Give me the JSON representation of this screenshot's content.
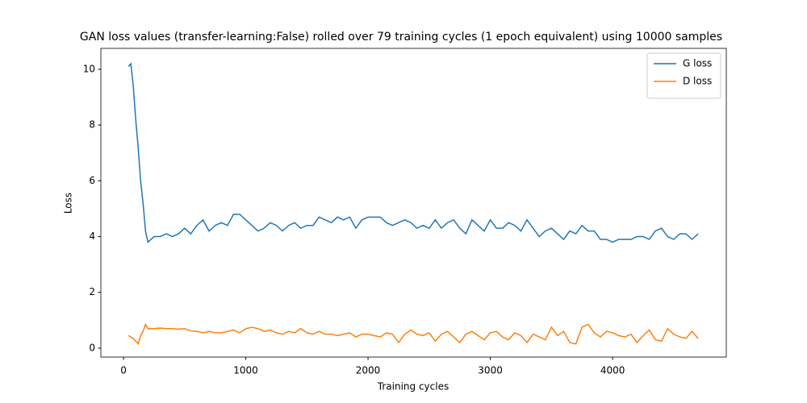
{
  "chart_data": {
    "type": "line",
    "title": "GAN loss values (transfer-learning:False) rolled over 79 training cycles (1 epoch equivalent) using 10000 samples",
    "x_label": "Training cycles",
    "y_label": "Loss",
    "x": [
      40,
      60,
      80,
      100,
      120,
      140,
      160,
      180,
      200,
      250,
      300,
      350,
      400,
      450,
      500,
      550,
      600,
      650,
      700,
      750,
      800,
      850,
      900,
      950,
      1000,
      1050,
      1100,
      1150,
      1200,
      1250,
      1300,
      1350,
      1400,
      1450,
      1500,
      1550,
      1600,
      1650,
      1700,
      1750,
      1800,
      1850,
      1900,
      1950,
      2000,
      2050,
      2100,
      2150,
      2200,
      2250,
      2300,
      2350,
      2400,
      2450,
      2500,
      2550,
      2600,
      2650,
      2700,
      2750,
      2800,
      2850,
      2900,
      2950,
      3000,
      3050,
      3100,
      3150,
      3200,
      3250,
      3300,
      3350,
      3400,
      3450,
      3500,
      3550,
      3600,
      3650,
      3700,
      3750,
      3800,
      3850,
      3900,
      3950,
      4000,
      4050,
      4100,
      4150,
      4200,
      4250,
      4300,
      4350,
      4400,
      4450,
      4500,
      4550,
      4600,
      4650,
      4700
    ],
    "series": [
      {
        "name": "G loss",
        "color": "#1f77b4",
        "values": [
          10.1,
          10.2,
          9.4,
          8.2,
          7.2,
          6.0,
          5.2,
          4.2,
          3.8,
          4.0,
          4.0,
          4.1,
          4.0,
          4.1,
          4.3,
          4.1,
          4.4,
          4.6,
          4.2,
          4.4,
          4.5,
          4.4,
          4.8,
          4.8,
          4.6,
          4.4,
          4.2,
          4.3,
          4.5,
          4.4,
          4.2,
          4.4,
          4.5,
          4.3,
          4.4,
          4.4,
          4.7,
          4.6,
          4.5,
          4.7,
          4.6,
          4.7,
          4.3,
          4.6,
          4.7,
          4.7,
          4.7,
          4.5,
          4.4,
          4.5,
          4.6,
          4.5,
          4.3,
          4.4,
          4.3,
          4.6,
          4.3,
          4.5,
          4.6,
          4.3,
          4.1,
          4.6,
          4.4,
          4.2,
          4.6,
          4.3,
          4.3,
          4.5,
          4.4,
          4.2,
          4.6,
          4.3,
          4.0,
          4.2,
          4.3,
          4.1,
          3.9,
          4.2,
          4.1,
          4.4,
          4.2,
          4.2,
          3.9,
          3.9,
          3.8,
          3.9,
          3.9,
          3.9,
          4.0,
          4.0,
          3.9,
          4.2,
          4.3,
          4.0,
          3.9,
          4.1,
          4.1,
          3.9,
          4.1
        ]
      },
      {
        "name": "D loss",
        "color": "#ff7f0e",
        "values": [
          0.45,
          0.4,
          0.35,
          0.25,
          0.15,
          0.45,
          0.6,
          0.85,
          0.7,
          0.7,
          0.72,
          0.7,
          0.7,
          0.68,
          0.7,
          0.62,
          0.6,
          0.55,
          0.6,
          0.55,
          0.55,
          0.6,
          0.65,
          0.55,
          0.7,
          0.75,
          0.7,
          0.6,
          0.65,
          0.55,
          0.5,
          0.6,
          0.55,
          0.7,
          0.55,
          0.5,
          0.6,
          0.5,
          0.5,
          0.45,
          0.5,
          0.55,
          0.4,
          0.5,
          0.5,
          0.45,
          0.4,
          0.55,
          0.5,
          0.2,
          0.5,
          0.65,
          0.5,
          0.45,
          0.55,
          0.25,
          0.5,
          0.6,
          0.4,
          0.2,
          0.5,
          0.6,
          0.45,
          0.3,
          0.55,
          0.6,
          0.4,
          0.3,
          0.55,
          0.45,
          0.2,
          0.5,
          0.4,
          0.3,
          0.75,
          0.45,
          0.6,
          0.2,
          0.15,
          0.75,
          0.85,
          0.55,
          0.4,
          0.6,
          0.55,
          0.45,
          0.4,
          0.5,
          0.2,
          0.45,
          0.65,
          0.3,
          0.25,
          0.7,
          0.5,
          0.4,
          0.35,
          0.6,
          0.35
        ]
      }
    ],
    "xlim": [
      -185,
      4930
    ],
    "ylim": [
      -0.32,
      10.75
    ],
    "xticks": [
      0,
      1000,
      2000,
      3000,
      4000
    ],
    "yticks": [
      0,
      2,
      4,
      6,
      8,
      10
    ],
    "grid": false,
    "legend": "upper right"
  }
}
